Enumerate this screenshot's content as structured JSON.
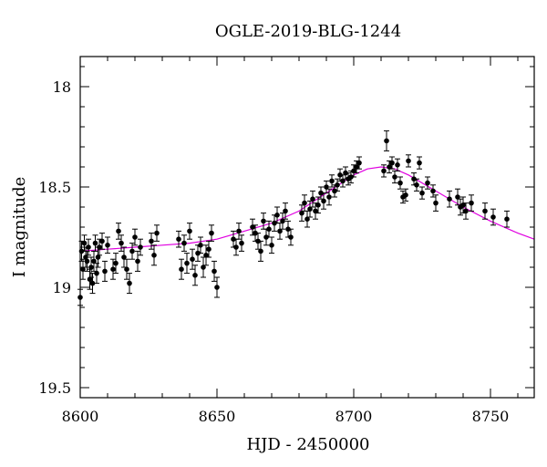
{
  "chart_data": {
    "type": "scatter",
    "title": "OGLE-2019-BLG-1244",
    "xlabel": "HJD - 2450000",
    "ylabel": "I magnitude",
    "xlim": [
      8600,
      8766
    ],
    "ylim": [
      17.85,
      19.55
    ],
    "y_inverted": true,
    "grid": false,
    "xticks": [
      8600,
      8650,
      8700,
      8750
    ],
    "yticks": [
      18,
      18.5,
      19,
      19.5
    ],
    "tick_labels_x": [
      "8600",
      "8650",
      "8700",
      "8750"
    ],
    "tick_labels_y": [
      "18",
      "18.5",
      "19",
      "19.5"
    ],
    "colors": {
      "points": "#000000",
      "model": "#e000e0"
    },
    "model": {
      "name": "",
      "x": [
        8600,
        8610,
        8620,
        8630,
        8640,
        8650,
        8660,
        8670,
        8680,
        8690,
        8700,
        8705,
        8710,
        8715,
        8720,
        8730,
        8740,
        8750,
        8760,
        8766
      ],
      "y": [
        18.82,
        18.81,
        18.8,
        18.79,
        18.78,
        18.76,
        18.72,
        18.68,
        18.62,
        18.53,
        18.44,
        18.41,
        18.4,
        18.41,
        18.44,
        18.52,
        18.6,
        18.67,
        18.73,
        18.76
      ]
    },
    "series": [
      {
        "name": "",
        "x": [
          8600,
          8600.5,
          8601,
          8601.5,
          8602,
          8602.5,
          8603,
          8603.5,
          8604,
          8604.5,
          8605,
          8605.5,
          8606,
          8606.5,
          8607,
          8608,
          8609,
          8610,
          8612,
          8613,
          8614,
          8615,
          8616,
          8617,
          8618,
          8619,
          8620,
          8621,
          8622,
          8626,
          8627,
          8628,
          8636,
          8637,
          8638,
          8639,
          8640,
          8641,
          8642,
          8643,
          8644,
          8645,
          8646,
          8647,
          8648,
          8649,
          8650,
          8656,
          8657,
          8658,
          8659,
          8663,
          8664,
          8665,
          8666,
          8667,
          8668,
          8669,
          8670,
          8671,
          8672,
          8673,
          8674,
          8675,
          8676,
          8677,
          8681,
          8682,
          8683,
          8684,
          8685,
          8686,
          8687,
          8688,
          8689,
          8690,
          8691,
          8692,
          8693,
          8694,
          8695,
          8696,
          8697,
          8698,
          8699,
          8700,
          8701,
          8702,
          8711,
          8712,
          8713,
          8714,
          8715,
          8716,
          8717,
          8718,
          8719,
          8720,
          8722,
          8723,
          8724,
          8725,
          8727,
          8729,
          8730,
          8735,
          8738,
          8739,
          8740,
          8741,
          8743,
          8748,
          8751,
          8756
        ],
        "y": [
          19.05,
          18.82,
          18.91,
          18.78,
          18.85,
          18.87,
          18.8,
          18.96,
          18.9,
          18.98,
          18.87,
          18.78,
          18.93,
          18.85,
          18.8,
          18.77,
          18.92,
          18.79,
          18.91,
          18.88,
          18.72,
          18.78,
          18.85,
          18.91,
          18.98,
          18.82,
          18.75,
          18.87,
          18.8,
          18.77,
          18.84,
          18.73,
          18.76,
          18.91,
          18.78,
          18.88,
          18.72,
          18.86,
          18.94,
          18.83,
          18.79,
          18.9,
          18.84,
          18.81,
          18.73,
          18.92,
          19.0,
          18.76,
          18.8,
          18.72,
          18.78,
          18.7,
          18.73,
          18.77,
          18.82,
          18.67,
          18.75,
          18.71,
          18.79,
          18.68,
          18.64,
          18.72,
          18.67,
          18.62,
          18.71,
          18.75,
          18.63,
          18.58,
          18.66,
          18.61,
          18.56,
          18.62,
          18.59,
          18.53,
          18.57,
          18.5,
          18.55,
          18.47,
          18.52,
          18.49,
          18.44,
          18.47,
          18.43,
          18.46,
          18.45,
          18.42,
          18.4,
          18.38,
          18.42,
          18.27,
          18.4,
          18.38,
          18.45,
          18.39,
          18.48,
          18.55,
          18.54,
          18.37,
          18.46,
          18.49,
          18.38,
          18.53,
          18.48,
          18.52,
          18.58,
          18.56,
          18.55,
          18.6,
          18.59,
          18.62,
          18.58,
          18.62,
          18.65,
          18.66
        ],
        "yerr": [
          0.04,
          0.05,
          0.05,
          0.04,
          0.05,
          0.05,
          0.04,
          0.05,
          0.05,
          0.05,
          0.05,
          0.04,
          0.05,
          0.05,
          0.04,
          0.04,
          0.05,
          0.04,
          0.05,
          0.05,
          0.04,
          0.04,
          0.05,
          0.05,
          0.05,
          0.04,
          0.04,
          0.05,
          0.04,
          0.04,
          0.05,
          0.04,
          0.04,
          0.05,
          0.04,
          0.05,
          0.04,
          0.05,
          0.05,
          0.04,
          0.04,
          0.05,
          0.05,
          0.04,
          0.04,
          0.05,
          0.05,
          0.04,
          0.04,
          0.04,
          0.04,
          0.04,
          0.04,
          0.04,
          0.05,
          0.04,
          0.04,
          0.04,
          0.04,
          0.04,
          0.04,
          0.04,
          0.04,
          0.04,
          0.04,
          0.04,
          0.04,
          0.04,
          0.04,
          0.04,
          0.04,
          0.04,
          0.04,
          0.03,
          0.04,
          0.03,
          0.04,
          0.03,
          0.03,
          0.03,
          0.03,
          0.03,
          0.03,
          0.03,
          0.03,
          0.03,
          0.03,
          0.03,
          0.03,
          0.05,
          0.03,
          0.03,
          0.03,
          0.03,
          0.03,
          0.03,
          0.03,
          0.03,
          0.03,
          0.03,
          0.03,
          0.03,
          0.03,
          0.03,
          0.04,
          0.04,
          0.04,
          0.04,
          0.04,
          0.04,
          0.04,
          0.04,
          0.04,
          0.04
        ]
      }
    ]
  }
}
